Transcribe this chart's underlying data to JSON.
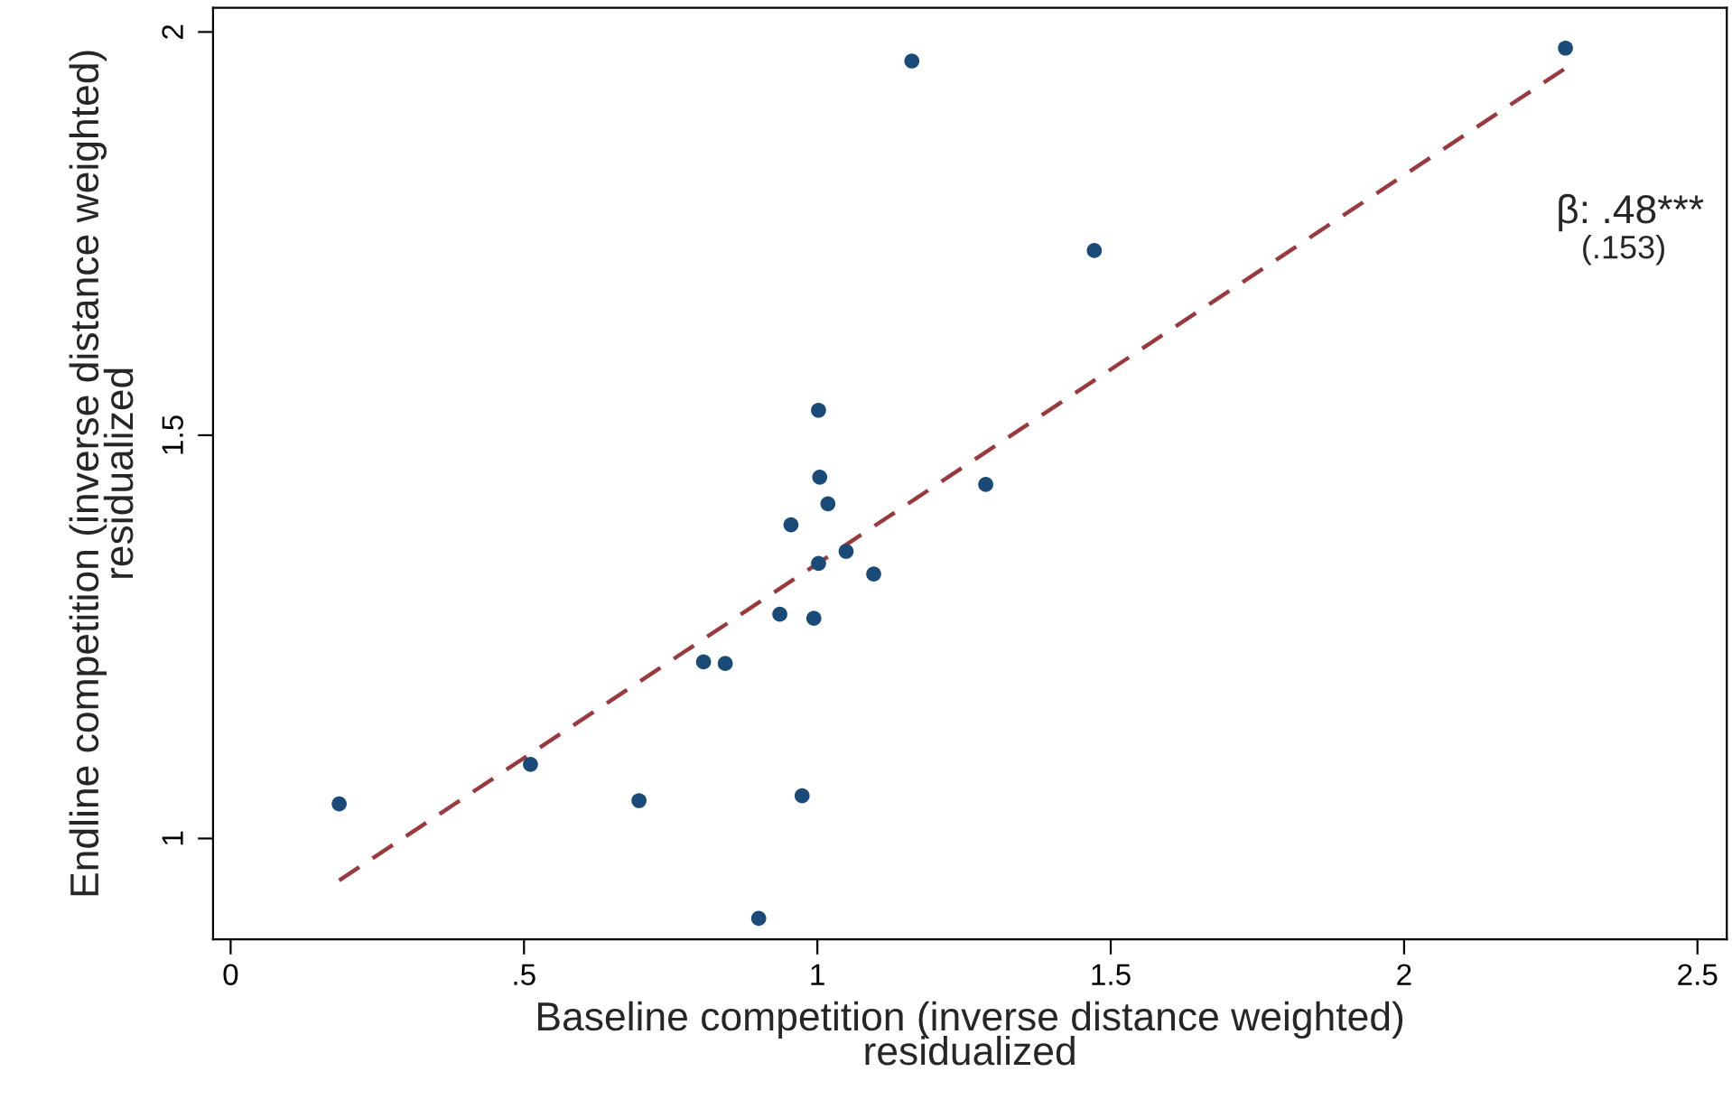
{
  "chart_data": {
    "type": "scatter",
    "xlabel": "Baseline competition (inverse distance weighted)\nresidualized",
    "ylabel": "Endline competition (inverse distance weighted)\nresidualized",
    "series": [
      {
        "color": "#1a4a78",
        "marker": "circle",
        "x": [
          0.185,
          0.511,
          0.696,
          0.806,
          0.843,
          0.9,
          0.936,
          0.955,
          0.974,
          0.994,
          1.002,
          1.002,
          1.004,
          1.018,
          1.049,
          1.096,
          1.161,
          1.287,
          1.472,
          2.275
        ],
        "values": [
          1.043,
          1.092,
          1.047,
          1.219,
          1.217,
          0.901,
          1.278,
          1.389,
          1.053,
          1.273,
          1.531,
          1.341,
          1.448,
          1.415,
          1.356,
          1.328,
          1.964,
          1.439,
          1.729,
          1.98
        ]
      },
      {
        "type": "line",
        "color": "#9a3a3f",
        "line_style": "dashed",
        "x": [
          0.185,
          2.275
        ],
        "values": [
          0.948,
          1.955
        ]
      }
    ],
    "annotations": [
      "β: .48***",
      "(.153)"
    ],
    "xlim": [
      -0.03,
      2.55
    ],
    "ylim": [
      0.875,
      2.03
    ],
    "xticks": [
      {
        "value": 0,
        "label": "0"
      },
      {
        "value": 0.5,
        "label": ".5"
      },
      {
        "value": 1,
        "label": "1"
      },
      {
        "value": 1.5,
        "label": "1.5"
      },
      {
        "value": 2,
        "label": "2"
      },
      {
        "value": 2.5,
        "label": "2.5"
      }
    ],
    "yticks": [
      1,
      1.5,
      2
    ],
    "grid": false,
    "legend": false
  }
}
